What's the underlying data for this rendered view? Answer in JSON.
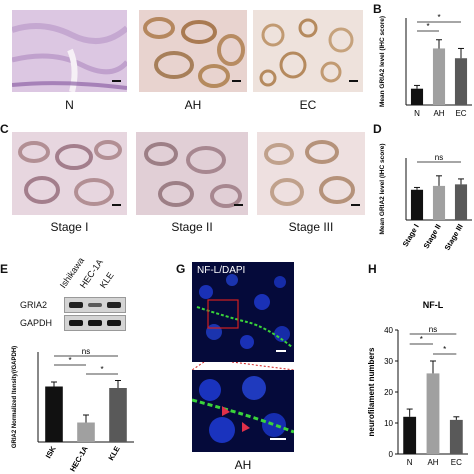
{
  "panels": {
    "A": {
      "letter": "",
      "images": [
        {
          "label": "N"
        },
        {
          "label": "AH"
        },
        {
          "label": "EC"
        }
      ]
    },
    "B": {
      "letter": "B"
    },
    "C": {
      "letter": "C",
      "images": [
        {
          "label": "Stage I"
        },
        {
          "label": "Stage II"
        },
        {
          "label": "Stage III"
        }
      ]
    },
    "D": {
      "letter": "D"
    },
    "E": {
      "letter": "E",
      "lanes": [
        "Ishikawa",
        "HEC-1A",
        "KLE"
      ],
      "bands": [
        "GRIA2",
        "GAPDH"
      ]
    },
    "G": {
      "letter": "G",
      "overlay_text": "NF-L/DAPI",
      "caption": "AH"
    },
    "H": {
      "letter": "H"
    }
  },
  "colors": {
    "ihc_bg": "#efe4ea",
    "stain_purple": "#a07ab0",
    "stain_brown": "#b58a5e",
    "fluor_bg": "#050a3a",
    "fluor_blue": "#1f3bd6",
    "fluor_green": "#3ad43a",
    "inset_red": "#d02020",
    "bar_black": "#111111",
    "bar_gray": "#a0a0a0",
    "bar_dark": "#595959"
  },
  "chart_data": [
    {
      "panel": "B",
      "type": "bar",
      "categories": [
        "N",
        "AH",
        "EC"
      ],
      "values": [
        1.5,
        5.2,
        4.3
      ],
      "errors": [
        0.3,
        0.8,
        0.9
      ],
      "bar_colors": [
        "#111111",
        "#a0a0a0",
        "#595959"
      ],
      "ylabel": "Mean GRIA2 level (IHC score)",
      "ylim": [
        0,
        8
      ],
      "yticks": [],
      "significance": [
        {
          "from": 0,
          "to": 2,
          "label": "*"
        },
        {
          "from": 0,
          "to": 1,
          "label": "*"
        }
      ]
    },
    {
      "panel": "D",
      "type": "bar",
      "categories": [
        "Stage I",
        "Stage II",
        "Stage III"
      ],
      "values": [
        3.9,
        4.4,
        4.6
      ],
      "errors": [
        0.3,
        1.3,
        0.7
      ],
      "bar_colors": [
        "#111111",
        "#a0a0a0",
        "#595959"
      ],
      "ylabel": "Mean GRIA2 level (IHC score)",
      "ylim": [
        0,
        8
      ],
      "yticks": [],
      "significance": [
        {
          "from": 0,
          "to": 2,
          "label": "ns"
        }
      ]
    },
    {
      "panel": "E",
      "type": "bar",
      "categories": [
        "ISK",
        "HEC-1A",
        "KLE"
      ],
      "values": [
        0.37,
        0.13,
        0.36
      ],
      "errors": [
        0.03,
        0.05,
        0.05
      ],
      "bar_colors": [
        "#111111",
        "#a0a0a0",
        "#595959"
      ],
      "ylabel": "GRIA2 Normalized Itensity(/GAPDH)",
      "ylim": [
        0,
        0.6
      ],
      "yticks": [],
      "significance": [
        {
          "from": 0,
          "to": 2,
          "label": "ns"
        },
        {
          "from": 0,
          "to": 1,
          "label": "*"
        },
        {
          "from": 1,
          "to": 2,
          "label": "*"
        }
      ]
    },
    {
      "panel": "H",
      "type": "bar",
      "title": "NF-L",
      "categories": [
        "N",
        "AH",
        "EC"
      ],
      "values": [
        12,
        26,
        11
      ],
      "errors": [
        2.5,
        4.0,
        1.0
      ],
      "bar_colors": [
        "#111111",
        "#a0a0a0",
        "#595959"
      ],
      "ylabel": "neurofilament numbers",
      "ylim": [
        0,
        40
      ],
      "yticks": [
        0,
        10,
        20,
        30,
        40
      ],
      "significance": [
        {
          "from": 0,
          "to": 2,
          "label": "ns"
        },
        {
          "from": 0,
          "to": 1,
          "label": "*"
        },
        {
          "from": 1,
          "to": 2,
          "label": "*"
        }
      ]
    }
  ]
}
